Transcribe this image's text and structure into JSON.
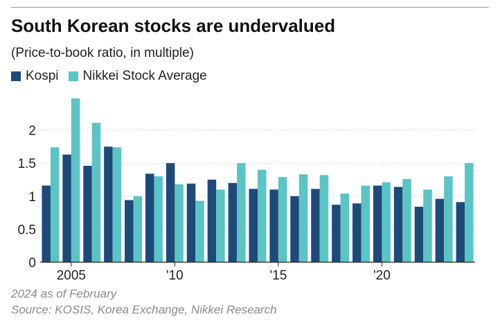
{
  "header": {
    "title": "South Korean stocks are undervalued",
    "subtitle": "(Price-to-book ratio, in multiple)"
  },
  "legend": {
    "items": [
      {
        "label": "Kospi",
        "color": "#1e4a7a"
      },
      {
        "label": "Nikkei Stock Average",
        "color": "#5bc4c4"
      }
    ]
  },
  "chart_data": {
    "type": "bar",
    "title": "South Korean stocks are undervalued",
    "subtitle": "(Price-to-book ratio, in multiple)",
    "xlabel": "",
    "ylabel": "",
    "ylim": [
      0,
      2.5
    ],
    "yticks": [
      0,
      0.5,
      1,
      1.5,
      2
    ],
    "ytick_labels": [
      "0",
      "0.5",
      "1",
      "1.5",
      "2"
    ],
    "grid": true,
    "legend_position": "top-left",
    "categories": [
      "2004",
      "2005",
      "2006",
      "2007",
      "2008",
      "2009",
      "2010",
      "2011",
      "2012",
      "2013",
      "2014",
      "2015",
      "2016",
      "2017",
      "2018",
      "2019",
      "2020",
      "2021",
      "2022",
      "2023",
      "2024"
    ],
    "xtick_labels": [
      {
        "category": "2005",
        "label": "2005"
      },
      {
        "category": "2010",
        "label": "'10"
      },
      {
        "category": "2015",
        "label": "'15"
      },
      {
        "category": "2020",
        "label": "'20"
      }
    ],
    "series": [
      {
        "name": "Kospi",
        "color": "#1e4a7a",
        "values": [
          1.16,
          1.63,
          1.46,
          1.75,
          0.94,
          1.34,
          1.5,
          1.19,
          1.25,
          1.2,
          1.11,
          1.1,
          1.0,
          1.11,
          0.87,
          0.89,
          1.16,
          1.14,
          0.84,
          0.96,
          0.91
        ]
      },
      {
        "name": "Nikkei Stock Average",
        "color": "#5bc4c4",
        "values": [
          1.74,
          2.48,
          2.11,
          1.74,
          1.0,
          1.3,
          1.18,
          0.93,
          1.1,
          1.5,
          1.4,
          1.29,
          1.33,
          1.32,
          1.04,
          1.16,
          1.21,
          1.26,
          1.1,
          1.3,
          1.5
        ]
      }
    ]
  },
  "footer": {
    "note": "2024 as of February",
    "source": "Source: KOSIS, Korea Exchange, Nikkei Research"
  }
}
